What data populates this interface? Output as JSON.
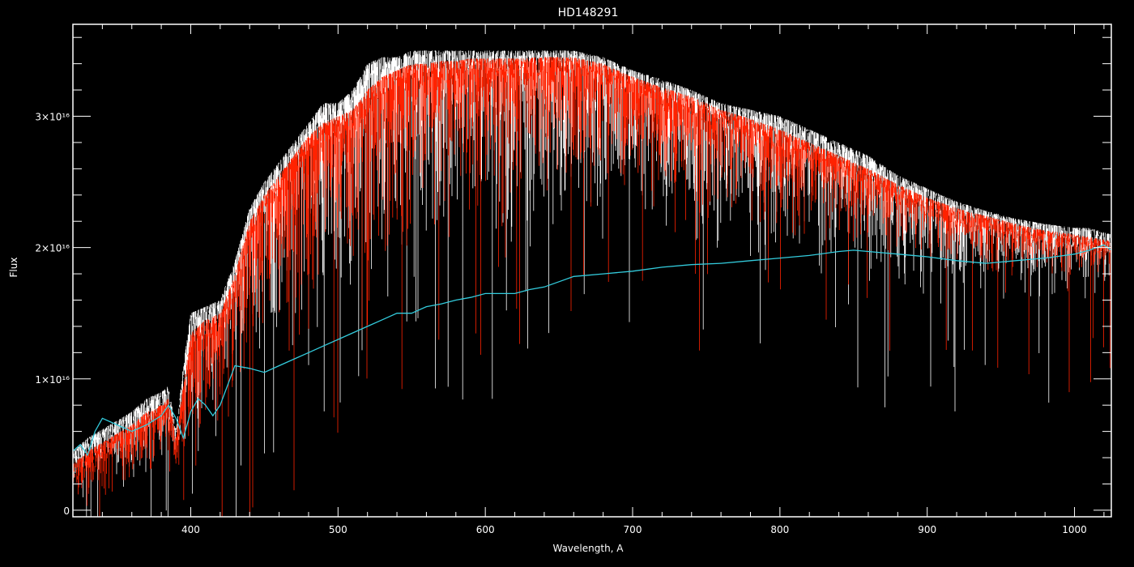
{
  "chart_data": {
    "type": "line",
    "title": "HD148291",
    "xlabel": "Wavelength, A",
    "ylabel": "Flux",
    "xlim": [
      320,
      1025
    ],
    "ylim": [
      -0.05,
      3.7
    ],
    "y_scale_label": "×10¹⁶",
    "x_ticks": [
      {
        "value": 400,
        "label": "400"
      },
      {
        "value": 500,
        "label": "500"
      },
      {
        "value": 600,
        "label": "600"
      },
      {
        "value": 700,
        "label": "700"
      },
      {
        "value": 800,
        "label": "800"
      },
      {
        "value": 900,
        "label": "900"
      },
      {
        "value": 1000,
        "label": "1000"
      }
    ],
    "y_ticks": [
      {
        "value": 0,
        "label": "0"
      },
      {
        "value": 1,
        "label": "1×10¹⁶"
      },
      {
        "value": 2,
        "label": "2×10¹⁶"
      },
      {
        "value": 3,
        "label": "3×10¹⁶"
      }
    ],
    "series": [
      {
        "color": "#ffffff",
        "style": "noisy-spectrum",
        "upper_envelope": {
          "x": [
            320,
            330,
            345,
            360,
            370,
            380,
            385,
            390,
            395,
            400,
            410,
            420,
            430,
            440,
            450,
            460,
            470,
            480,
            490,
            500,
            510,
            520,
            530,
            540,
            550,
            560,
            570,
            580,
            590,
            600,
            620,
            640,
            660,
            680,
            700,
            720,
            740,
            760,
            780,
            800,
            820,
            840,
            860,
            880,
            900,
            920,
            940,
            960,
            980,
            1000,
            1010,
            1025
          ],
          "y": [
            0.45,
            0.55,
            0.65,
            0.75,
            0.85,
            0.9,
            0.95,
            0.6,
            1.1,
            1.5,
            1.55,
            1.6,
            1.9,
            2.3,
            2.5,
            2.65,
            2.8,
            2.95,
            3.1,
            3.1,
            3.2,
            3.4,
            3.45,
            3.45,
            3.5,
            3.5,
            3.5,
            3.5,
            3.5,
            3.5,
            3.5,
            3.5,
            3.5,
            3.45,
            3.35,
            3.28,
            3.2,
            3.1,
            3.05,
            3.0,
            2.9,
            2.8,
            2.7,
            2.55,
            2.45,
            2.35,
            2.28,
            2.22,
            2.18,
            2.15,
            2.15,
            2.1
          ]
        },
        "lower_envelope": {
          "x": [
            320,
            360,
            400,
            450,
            500,
            550,
            600,
            700,
            800,
            900,
            1000,
            1025
          ],
          "y": [
            0.0,
            0.1,
            0.4,
            1.0,
            1.2,
            1.5,
            1.7,
            1.9,
            1.7,
            1.5,
            1.5,
            1.5
          ]
        }
      },
      {
        "color": "#ff2200",
        "style": "noisy-spectrum",
        "upper_envelope": {
          "x": [
            320,
            330,
            345,
            360,
            370,
            380,
            385,
            390,
            395,
            400,
            410,
            420,
            430,
            440,
            450,
            460,
            470,
            480,
            490,
            500,
            510,
            520,
            530,
            540,
            550,
            560,
            570,
            580,
            590,
            600,
            620,
            640,
            660,
            680,
            700,
            720,
            740,
            760,
            780,
            800,
            820,
            840,
            860,
            880,
            900,
            920,
            940,
            960,
            980,
            1000,
            1010,
            1025
          ],
          "y": [
            0.35,
            0.45,
            0.55,
            0.65,
            0.75,
            0.8,
            0.85,
            0.55,
            0.95,
            1.35,
            1.45,
            1.5,
            1.8,
            2.2,
            2.4,
            2.55,
            2.7,
            2.85,
            2.95,
            3.0,
            3.05,
            3.2,
            3.3,
            3.35,
            3.4,
            3.4,
            3.42,
            3.42,
            3.44,
            3.44,
            3.44,
            3.45,
            3.45,
            3.4,
            3.3,
            3.22,
            3.15,
            3.05,
            2.98,
            2.9,
            2.8,
            2.7,
            2.6,
            2.48,
            2.38,
            2.3,
            2.24,
            2.18,
            2.13,
            2.1,
            2.08,
            2.05
          ]
        },
        "lower_envelope": {
          "x": [
            320,
            360,
            400,
            450,
            500,
            550,
            600,
            700,
            800,
            900,
            1000,
            1025
          ],
          "y": [
            0.0,
            0.05,
            0.1,
            0.8,
            1.4,
            1.7,
            2.0,
            2.2,
            2.0,
            1.8,
            1.7,
            1.8
          ]
        }
      },
      {
        "color": "#33ccdd",
        "style": "smooth",
        "x": [
          320,
          325,
          330,
          335,
          340,
          350,
          360,
          370,
          380,
          385,
          390,
          395,
          400,
          405,
          410,
          415,
          420,
          425,
          430,
          440,
          450,
          460,
          470,
          480,
          490,
          500,
          510,
          520,
          530,
          540,
          550,
          560,
          570,
          580,
          590,
          600,
          610,
          620,
          630,
          640,
          650,
          660,
          680,
          700,
          720,
          740,
          760,
          780,
          800,
          820,
          840,
          850,
          860,
          880,
          900,
          920,
          940,
          960,
          980,
          1000,
          1010,
          1020,
          1025
        ],
        "y": [
          0.45,
          0.5,
          0.42,
          0.6,
          0.7,
          0.65,
          0.6,
          0.65,
          0.72,
          0.8,
          0.7,
          0.55,
          0.75,
          0.85,
          0.8,
          0.72,
          0.8,
          0.95,
          1.1,
          1.08,
          1.05,
          1.1,
          1.15,
          1.2,
          1.25,
          1.3,
          1.35,
          1.4,
          1.45,
          1.5,
          1.5,
          1.55,
          1.57,
          1.6,
          1.62,
          1.65,
          1.65,
          1.65,
          1.68,
          1.7,
          1.74,
          1.78,
          1.8,
          1.82,
          1.85,
          1.87,
          1.88,
          1.9,
          1.92,
          1.94,
          1.97,
          1.98,
          1.97,
          1.95,
          1.93,
          1.9,
          1.88,
          1.9,
          1.92,
          1.95,
          1.98,
          2.02,
          1.98
        ]
      }
    ]
  }
}
